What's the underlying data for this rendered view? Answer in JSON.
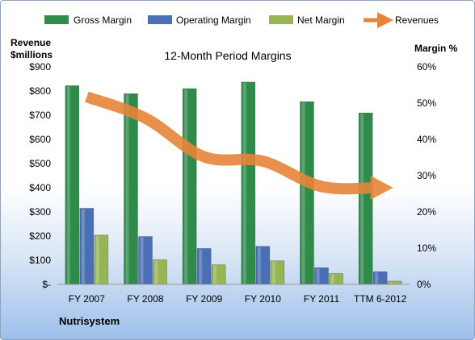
{
  "chart_data": {
    "type": "bar",
    "title": "12-Month Period Margins",
    "company": "Nutrisystem",
    "categories": [
      "FY 2007",
      "FY 2008",
      "FY 2009",
      "FY 2010",
      "FY 2011",
      "TTM 6-2012"
    ],
    "left_axis": {
      "label_line1": "Revenue",
      "label_line2": "$millions",
      "ylim": [
        0,
        900
      ],
      "ticks": [
        "$-",
        "$100",
        "$200",
        "$300",
        "$400",
        "$500",
        "$600",
        "$700",
        "$800",
        "$900"
      ]
    },
    "right_axis": {
      "label": "Margin %",
      "ylim": [
        0,
        60
      ],
      "ticks": [
        "0%",
        "10%",
        "20%",
        "30%",
        "40%",
        "50%",
        "60%"
      ]
    },
    "series": [
      {
        "name": "Gross Margin",
        "axis": "right",
        "type": "bar",
        "color": "#2e8b4a",
        "values": [
          54.8,
          52.6,
          54.0,
          55.8,
          50.4,
          47.3
        ]
      },
      {
        "name": "Operating Margin",
        "axis": "right",
        "type": "bar",
        "color": "#4a6fb5",
        "values": [
          21.0,
          13.2,
          9.9,
          10.5,
          4.6,
          3.5
        ]
      },
      {
        "name": "Net Margin",
        "axis": "right",
        "type": "bar",
        "color": "#97b552",
        "values": [
          13.6,
          6.8,
          5.4,
          6.5,
          3.0,
          0.9
        ]
      },
      {
        "name": "Revenues",
        "axis": "left",
        "type": "line",
        "color": "#e8843a",
        "values": [
          776,
          688,
          528,
          510,
          405,
          400
        ]
      }
    ],
    "legend_position": "top",
    "grid": false
  }
}
